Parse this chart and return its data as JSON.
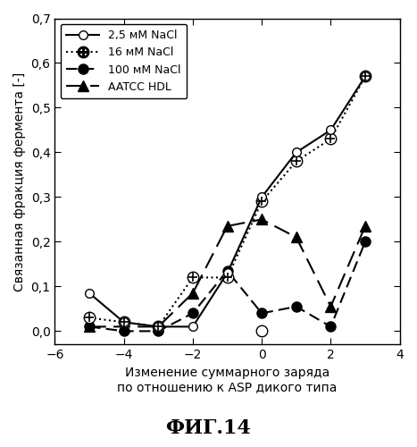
{
  "title": "ФИГ.14",
  "ylabel": "Связанная фракция фермента [-]",
  "xlabel": "Изменение суммарного заряда\nпо отношению к ASP дикого типа",
  "ylim": [
    -0.03,
    0.7
  ],
  "xlim": [
    -6,
    4
  ],
  "yticks": [
    0.0,
    0.1,
    0.2,
    0.3,
    0.4,
    0.5,
    0.6,
    0.7
  ],
  "xticks": [
    -6,
    -4,
    -2,
    0,
    2,
    4
  ],
  "series": [
    {
      "label": "2,5 мМ NaCl",
      "x": [
        -5,
        -4,
        -3,
        -2,
        -1,
        0,
        1,
        2,
        3
      ],
      "y": [
        0.085,
        0.02,
        0.01,
        0.01,
        0.13,
        0.3,
        0.4,
        0.45,
        0.57
      ],
      "linestyle": "-",
      "marker": "o",
      "markerfacecolor": "white",
      "markersize": 7,
      "linewidth": 1.5
    },
    {
      "label": "16 мМ NaCl",
      "x": [
        -5,
        -4,
        -3,
        -2,
        -1,
        0,
        1,
        2,
        3
      ],
      "y": [
        0.03,
        0.02,
        0.01,
        0.12,
        0.12,
        0.29,
        0.38,
        0.43,
        0.57
      ],
      "linestyle": "dotted",
      "marker": "o",
      "markerfacecolor": "white",
      "markersize": 9,
      "linewidth": 1.5
    },
    {
      "label": "100 мМ NaCl",
      "x": [
        -5,
        -4,
        -3,
        -2,
        -1,
        0,
        1,
        2,
        3
      ],
      "y": [
        0.01,
        0.0,
        0.0,
        0.04,
        0.135,
        0.04,
        0.055,
        0.01,
        0.2
      ],
      "linestyle": "--",
      "marker": "o",
      "markerfacecolor": "black",
      "markersize": 8,
      "linewidth": 1.5,
      "dashes": [
        6,
        3
      ]
    },
    {
      "label": "AATCC HDL",
      "x": [
        -5,
        -4,
        -3,
        -2,
        -1,
        0,
        1,
        2,
        3
      ],
      "y": [
        0.01,
        0.01,
        0.01,
        0.085,
        0.235,
        0.25,
        0.21,
        0.055,
        0.235
      ],
      "linestyle": "--",
      "marker": "^",
      "markerfacecolor": "black",
      "markersize": 8,
      "linewidth": 1.5,
      "dashes": [
        9,
        4
      ]
    }
  ],
  "legend_loc": "upper left",
  "background_color": "white"
}
